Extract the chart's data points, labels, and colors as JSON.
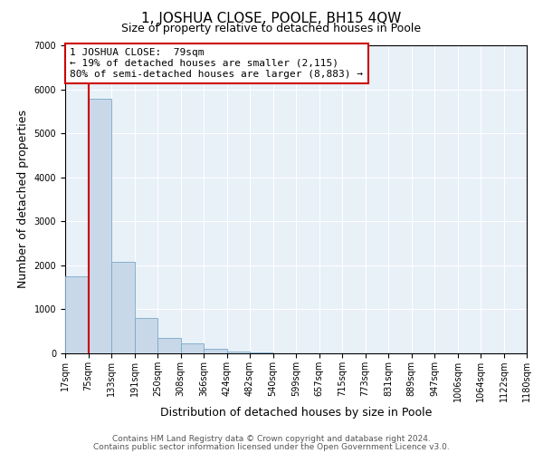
{
  "title": "1, JOSHUA CLOSE, POOLE, BH15 4QW",
  "subtitle": "Size of property relative to detached houses in Poole",
  "xlabel": "Distribution of detached houses by size in Poole",
  "ylabel": "Number of detached properties",
  "bar_values": [
    1750,
    5780,
    2070,
    800,
    360,
    230,
    110,
    50,
    30,
    0,
    0,
    0,
    0,
    0,
    0,
    0,
    0,
    0,
    0,
    0
  ],
  "bin_labels": [
    "17sqm",
    "75sqm",
    "133sqm",
    "191sqm",
    "250sqm",
    "308sqm",
    "366sqm",
    "424sqm",
    "482sqm",
    "540sqm",
    "599sqm",
    "657sqm",
    "715sqm",
    "773sqm",
    "831sqm",
    "889sqm",
    "947sqm",
    "1006sqm",
    "1064sqm",
    "1122sqm",
    "1180sqm"
  ],
  "bar_color": "#c8d8e8",
  "bar_edge_color": "#7aaac8",
  "vline_x": 1.0,
  "vline_color": "#cc0000",
  "annotation_box_text": "1 JOSHUA CLOSE:  79sqm\n← 19% of detached houses are smaller (2,115)\n80% of semi-detached houses are larger (8,883) →",
  "annotation_box_color": "#cc0000",
  "ylim": [
    0,
    7000
  ],
  "yticks": [
    0,
    1000,
    2000,
    3000,
    4000,
    5000,
    6000,
    7000
  ],
  "footer_line1": "Contains HM Land Registry data © Crown copyright and database right 2024.",
  "footer_line2": "Contains public sector information licensed under the Open Government Licence v3.0.",
  "background_color": "#e8f0f8",
  "fig_background_color": "#ffffff",
  "grid_color": "#ffffff",
  "title_fontsize": 11,
  "subtitle_fontsize": 9,
  "xlabel_fontsize": 9,
  "ylabel_fontsize": 9,
  "tick_fontsize": 7,
  "annot_fontsize": 8,
  "footer_fontsize": 6.5
}
